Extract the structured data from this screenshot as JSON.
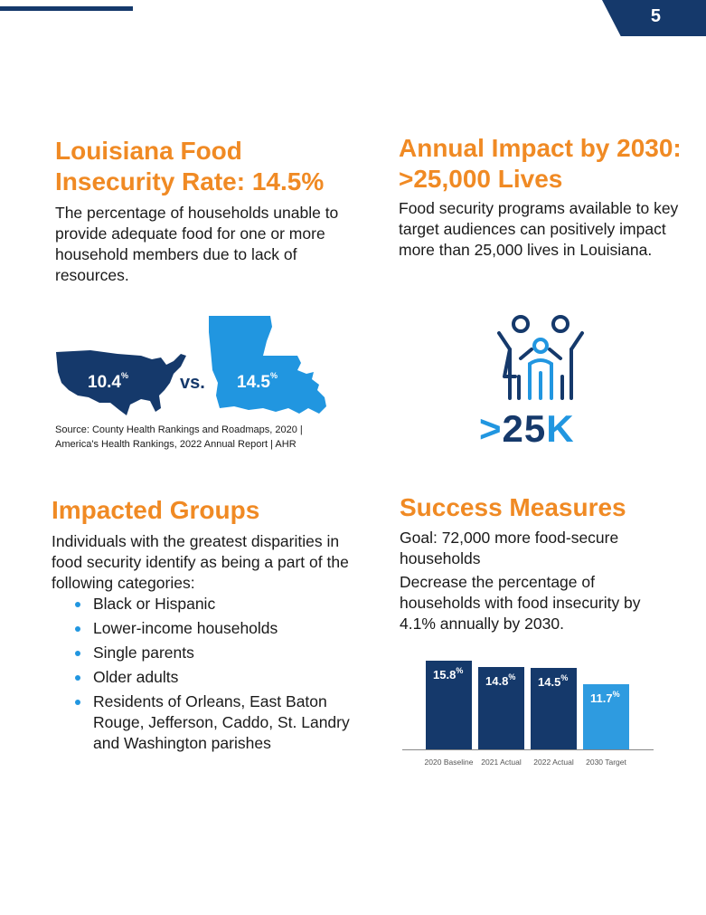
{
  "page_number": "5",
  "colors": {
    "navy": "#15396b",
    "orange": "#f08a24",
    "blue": "#2196e0"
  },
  "left_top": {
    "heading": "Louisiana Food Insecurity Rate: 14.5%",
    "body": "The percentage of households unable to provide adequate food for one or more household members due to lack of resources.",
    "us_value": "10.4",
    "vs": "vs.",
    "la_value": "14.5",
    "percent_sign": "%",
    "source_line1": "Source: County Health Rankings and Roadmaps, 2020 |",
    "source_line2": "America's Health Rankings, 2022 Annual Report | AHR"
  },
  "right_top": {
    "heading": "Annual Impact by 2030: >25,000 Lives",
    "body": "Food security programs available to key target audiences can positively impact more than 25,000 lives in Louisiana.",
    "big_gt": ">",
    "big_num": "25",
    "big_k": "K",
    "icon": "family-icon"
  },
  "left_bottom": {
    "heading": "Impacted Groups",
    "body": "Individuals with the greatest disparities in food security identify as being a part of the following categories:",
    "items": [
      "Black or Hispanic",
      "Lower-income households",
      "Single parents",
      "Older adults",
      "Residents of Orleans, East Baton Rouge, Jefferson, Caddo, St. Landry and Washington parishes"
    ]
  },
  "right_bottom": {
    "heading": "Success Measures",
    "goal": "Goal: 72,000 more food-secure households",
    "decrease": "Decrease the percentage of households with food insecurity by 4.1% annually by 2030."
  },
  "chart_data": {
    "type": "bar",
    "categories": [
      "2020 Baseline",
      "2021 Actual",
      "2022 Actual",
      "2030 Target"
    ],
    "values": [
      15.8,
      14.8,
      14.5,
      11.7
    ],
    "labels": [
      "15.8",
      "14.8",
      "14.5",
      "11.7"
    ],
    "unit": "%",
    "ylim": [
      0,
      17
    ],
    "colors": [
      "#15396b",
      "#15396b",
      "#15396b",
      "#2e9be0"
    ]
  }
}
